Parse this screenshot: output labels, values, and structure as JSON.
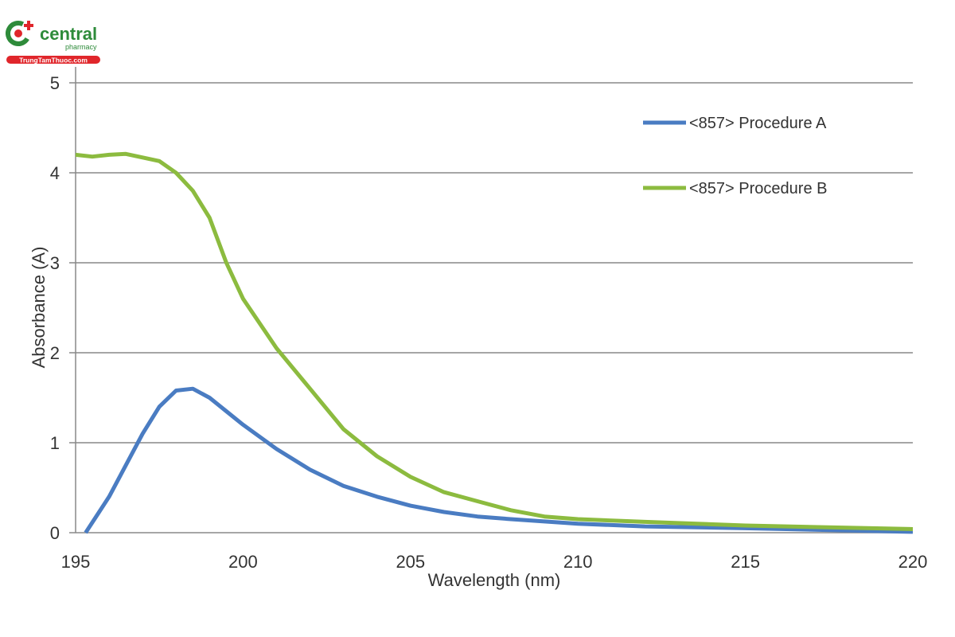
{
  "watermark": {
    "brand": "central",
    "sub": "pharmacy",
    "site": "TrungTamThuoc.com",
    "colors": {
      "green": "#2e8b3a",
      "red": "#e0262b"
    }
  },
  "chart_data": {
    "type": "line",
    "title": "",
    "xlabel": "Wavelength (nm)",
    "ylabel": "Absorbance (A)",
    "xlim": [
      195,
      220
    ],
    "ylim": [
      0,
      5
    ],
    "xticks": [
      195,
      200,
      205,
      210,
      215,
      220
    ],
    "yticks": [
      0,
      1,
      2,
      3,
      4,
      5
    ],
    "grid": "horizontal",
    "legend_position": "top-right",
    "series": [
      {
        "name": "<857> Procedure A",
        "color": "#4a7cc2",
        "x": [
          195.3,
          196,
          196.5,
          197,
          197.5,
          198,
          198.5,
          199,
          199.5,
          200,
          201,
          202,
          203,
          204,
          205,
          206,
          207,
          208,
          210,
          212,
          215,
          220
        ],
        "y": [
          0,
          0.4,
          0.75,
          1.1,
          1.4,
          1.58,
          1.6,
          1.5,
          1.35,
          1.2,
          0.93,
          0.7,
          0.52,
          0.4,
          0.3,
          0.23,
          0.18,
          0.15,
          0.1,
          0.07,
          0.05,
          0.01
        ]
      },
      {
        "name": "<857> Procedure B",
        "color": "#8cbb3f",
        "x": [
          195,
          195.5,
          196,
          196.5,
          197,
          197.5,
          198,
          198.5,
          199,
          199.5,
          200,
          201,
          202,
          203,
          204,
          205,
          206,
          207,
          208,
          209,
          210,
          212,
          215,
          220
        ],
        "y": [
          4.2,
          4.18,
          4.2,
          4.21,
          4.17,
          4.13,
          4.0,
          3.8,
          3.5,
          3.0,
          2.6,
          2.05,
          1.6,
          1.15,
          0.85,
          0.62,
          0.45,
          0.35,
          0.25,
          0.18,
          0.15,
          0.12,
          0.08,
          0.04
        ]
      }
    ]
  }
}
